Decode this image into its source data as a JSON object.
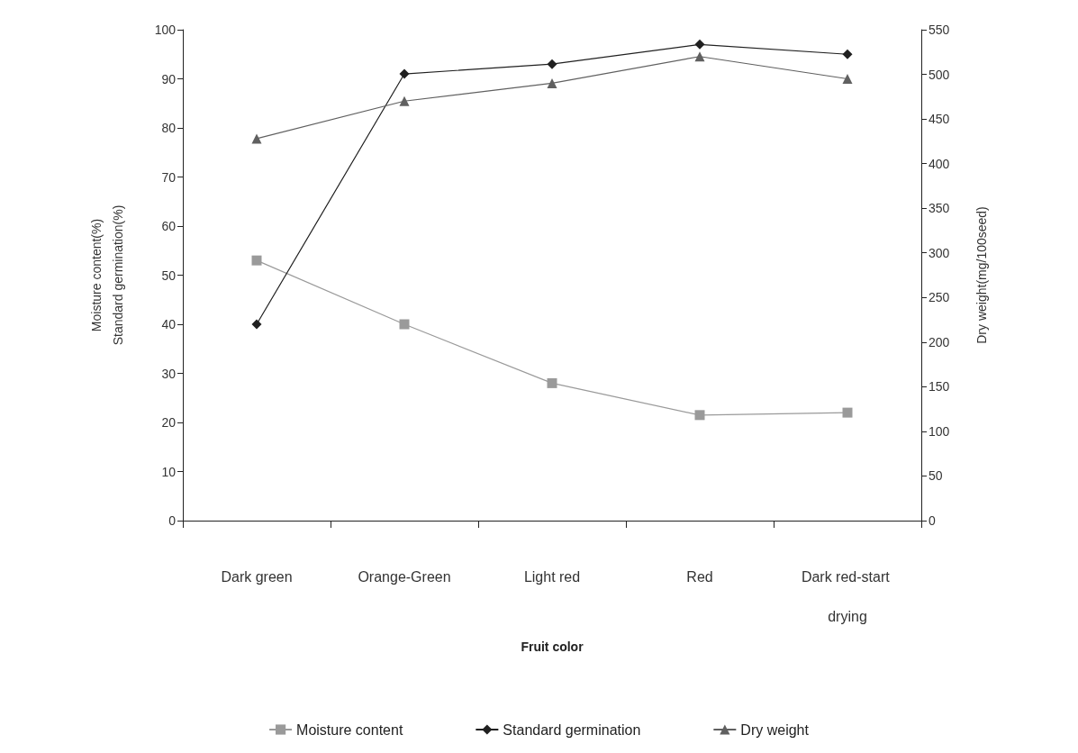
{
  "chart_data": {
    "type": "line",
    "xlabel": "Fruit color",
    "ylabel": "Moisture content(%)\nStandard germination(%)",
    "y2label": "Dry weight(mg/100seed)",
    "categories": [
      "Dark green",
      "Orange-Green",
      "Light red",
      "Red",
      "Dark red-start drying"
    ],
    "series": [
      {
        "name": "Moisture content",
        "color": "#9a9a9a",
        "marker": "square",
        "values": [
          53,
          40,
          28,
          21.5,
          22
        ]
      },
      {
        "name": "Standard germination",
        "color": "#202020",
        "marker": "diamond",
        "values": [
          40,
          91,
          93,
          97,
          95
        ]
      },
      {
        "name": "Dry weight",
        "color": "#606060",
        "marker": "triangle",
        "axis": "y2",
        "values": [
          428,
          470,
          490,
          520,
          495
        ]
      }
    ],
    "ylim": [
      0,
      100
    ],
    "yticks": [
      0,
      10,
      20,
      30,
      40,
      50,
      60,
      70,
      80,
      90,
      100
    ],
    "y2lim": [
      0,
      550
    ],
    "y2ticks": [
      0,
      50,
      100,
      150,
      200,
      250,
      300,
      350,
      400,
      450,
      500,
      550
    ],
    "grid": false,
    "legend": "bottom",
    "line_style": "solid"
  }
}
